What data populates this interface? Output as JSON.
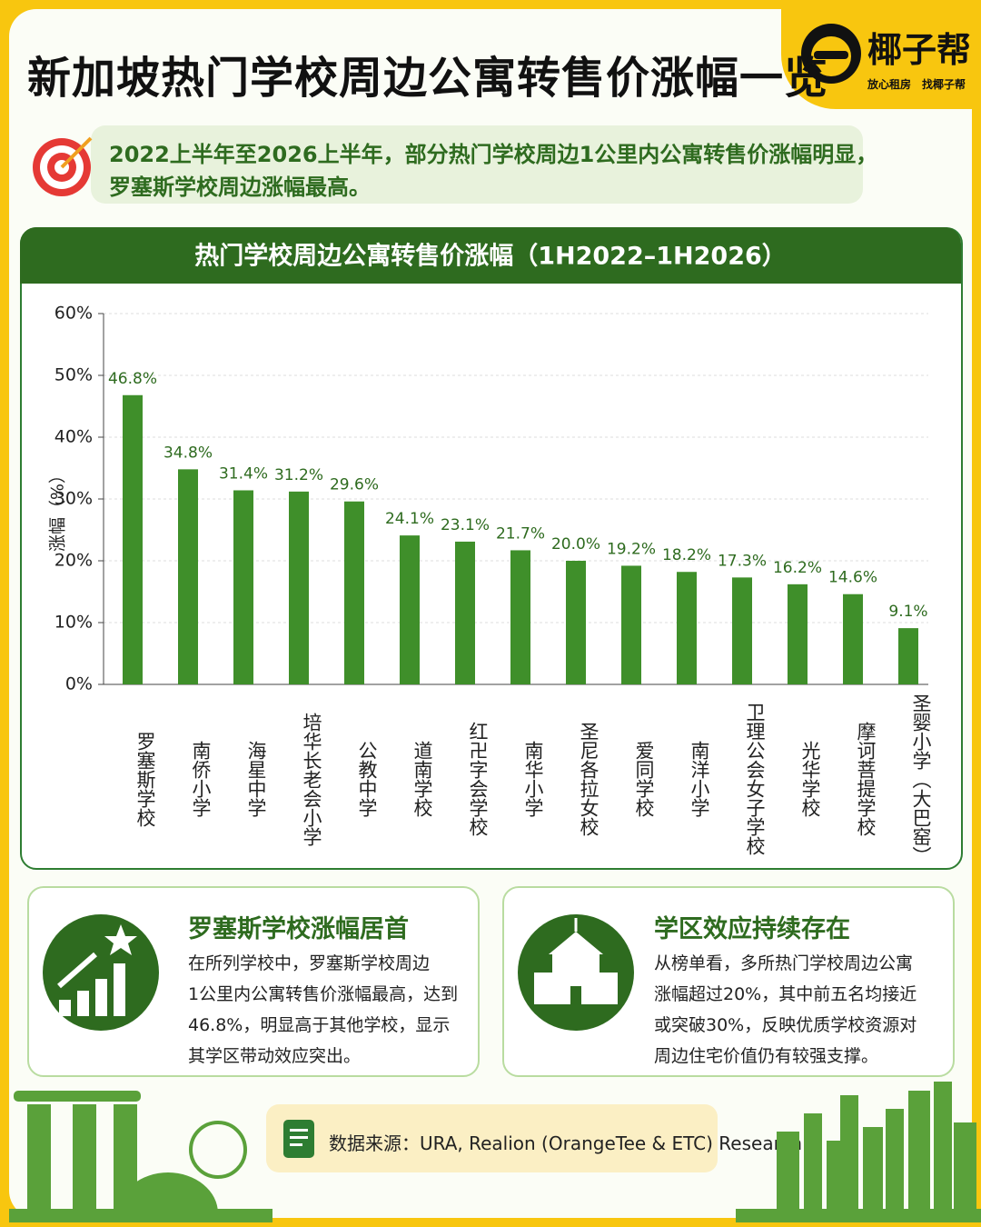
{
  "header": {
    "title": "新加坡热门学校周边公寓转售价涨幅一览",
    "brand": "椰子帮",
    "taglines": [
      "放心租房",
      "找椰子帮"
    ]
  },
  "summary": [
    "2022上半年至2026上半年，部分热门学校周边1公里内公寓转售价涨幅明显，",
    "罗塞斯学校周边涨幅最高。"
  ],
  "chart_data": {
    "type": "bar",
    "title": "热门学校周边公寓转售价涨幅（1H2022–1H2026）",
    "ylabel": "涨幅（%）",
    "categories": [
      "罗塞斯学校",
      "南侨小学",
      "海星中学",
      "培华长老会小学",
      "公教中学",
      "道南学校",
      "红卍字会学校",
      "南华小学",
      "圣尼各拉女校",
      "爱同学校",
      "南洋小学",
      "卫理公会女子学校",
      "光华学校",
      "摩诃菩提学校",
      "圣婴小学（大巴窑）"
    ],
    "values": [
      46.8,
      34.8,
      31.4,
      31.2,
      29.6,
      24.1,
      23.1,
      21.7,
      20.0,
      19.2,
      18.2,
      17.3,
      16.2,
      14.6,
      9.1
    ],
    "value_labels": [
      "46.8%",
      "34.8%",
      "31.4%",
      "31.2%",
      "29.6%",
      "24.1%",
      "23.1%",
      "21.7%",
      "20.0%",
      "19.2%",
      "18.2%",
      "17.3%",
      "16.2%",
      "14.6%",
      "9.1%"
    ],
    "color": "#3f8f2a",
    "ylim": [
      0,
      60
    ],
    "yticks": [
      {
        "value": 0,
        "label": "0%"
      },
      {
        "value": 10,
        "label": "10%"
      },
      {
        "value": 20,
        "label": "20%"
      },
      {
        "value": 30,
        "label": "30%"
      },
      {
        "value": 40,
        "label": "40%"
      },
      {
        "value": 50,
        "label": "50%"
      },
      {
        "value": 60,
        "label": "60%"
      }
    ],
    "grid": true
  },
  "cards": [
    {
      "title": "罗塞斯学校涨幅居首",
      "lines": [
        "在所列学校中，罗塞斯学校周边",
        "1公里内公寓转售价涨幅最高，达到",
        "46.8%，明显高于其他学校，显示",
        "其学区带动效应突出。"
      ]
    },
    {
      "title": "学区效应持续存在",
      "lines": [
        "从榜单看，多所热门学校周边公寓",
        "涨幅超过20%，其中前五名均接近",
        "或突破30%，反映优质学校资源对",
        "周边住宅价值仍有较强支撑。"
      ]
    }
  ],
  "source": "数据来源：URA, Realion (OrangeTee & ETC) Research"
}
